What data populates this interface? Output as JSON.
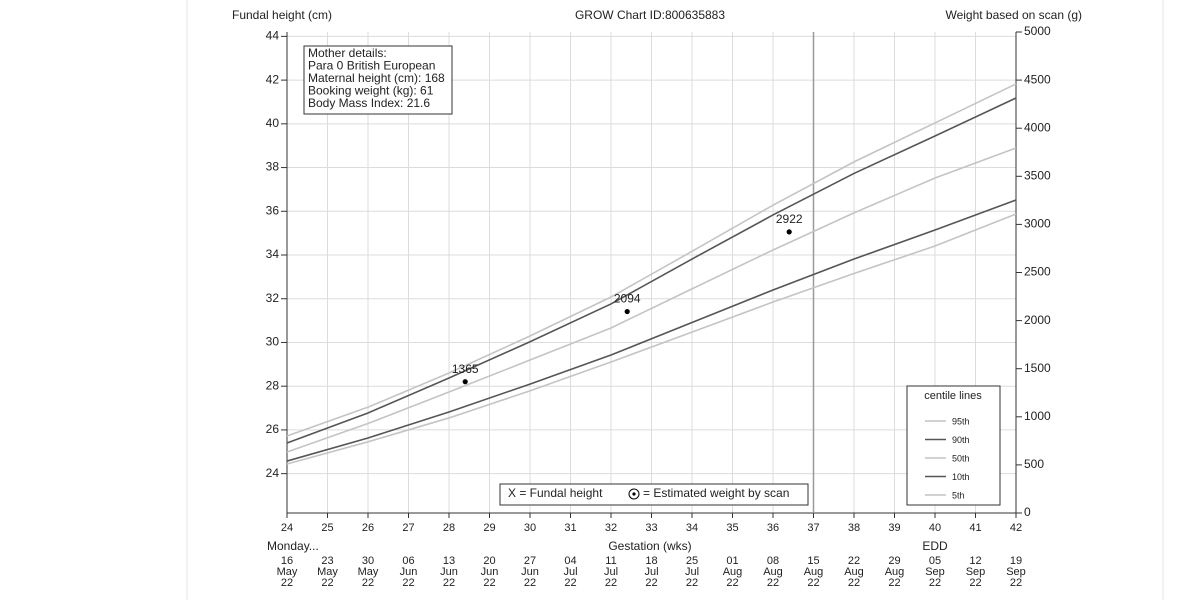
{
  "chart_data": {
    "type": "line",
    "title": "GROW Chart ID:800635883",
    "y_label": "Fundal height (cm)",
    "y2_label": "Weight based on scan (g)",
    "x_label": "Gestation (wks)",
    "date_caption": "Monday...",
    "edd_label": "EDD",
    "x": [
      24,
      26,
      28,
      30,
      32,
      34,
      36,
      38,
      40,
      42
    ],
    "xlim": [
      24,
      42
    ],
    "xticks": [
      24,
      25,
      26,
      27,
      28,
      29,
      30,
      31,
      32,
      33,
      34,
      35,
      36,
      37,
      38,
      39,
      40,
      41,
      42
    ],
    "ylim": [
      22.2,
      44.2
    ],
    "yticks": [
      24,
      26,
      28,
      30,
      32,
      34,
      36,
      38,
      40,
      42,
      44
    ],
    "y2lim": [
      0,
      5000
    ],
    "y2ticks": [
      0,
      500,
      1000,
      1500,
      2000,
      2500,
      3000,
      3500,
      4000,
      4500,
      5000
    ],
    "grid": true,
    "current_week": 37,
    "series": [
      {
        "name": "95th",
        "color": "#c4c4c4",
        "axis": "y2",
        "values": [
          800,
          1100,
          1455,
          1840,
          2245,
          2720,
          3200,
          3650,
          4055,
          4460
        ]
      },
      {
        "name": "90th",
        "color": "#555555",
        "axis": "y2",
        "values": [
          728,
          1040,
          1403,
          1780,
          2173,
          2640,
          3098,
          3530,
          3919,
          4314
        ]
      },
      {
        "name": "50th",
        "color": "#c4c4c4",
        "axis": "y2",
        "values": [
          634,
          930,
          1258,
          1590,
          1923,
          2330,
          2734,
          3120,
          3482,
          3794
        ]
      },
      {
        "name": "10th",
        "color": "#555555",
        "axis": "y2",
        "values": [
          540,
          780,
          1050,
          1340,
          1642,
          1980,
          2318,
          2640,
          2942,
          3254
        ]
      },
      {
        "name": "5th",
        "color": "#c4c4c4",
        "axis": "y2",
        "values": [
          509,
          740,
          988,
          1270,
          1570,
          1880,
          2193,
          2490,
          2775,
          3108
        ]
      }
    ],
    "legend_title": "centile lines",
    "scans": {
      "x": [
        28.4,
        32.4,
        36.4
      ],
      "values": [
        1365,
        2094,
        2922
      ],
      "color": "#000000"
    },
    "fundal_legend": "X = Fundal height",
    "scan_legend": "= Estimated weight by scan",
    "mother_details": [
      "Mother details:",
      "Para 0  British European",
      "Maternal height (cm): 168",
      "Booking weight (kg): 61",
      "Body Mass Index: 21.6"
    ],
    "dates": [
      [
        "16",
        "May",
        "22"
      ],
      [
        "23",
        "May",
        "22"
      ],
      [
        "30",
        "May",
        "22"
      ],
      [
        "06",
        "Jun",
        "22"
      ],
      [
        "13",
        "Jun",
        "22"
      ],
      [
        "20",
        "Jun",
        "22"
      ],
      [
        "27",
        "Jun",
        "22"
      ],
      [
        "04",
        "Jul",
        "22"
      ],
      [
        "11",
        "Jul",
        "22"
      ],
      [
        "18",
        "Jul",
        "22"
      ],
      [
        "25",
        "Jul",
        "22"
      ],
      [
        "01",
        "Aug",
        "22"
      ],
      [
        "08",
        "Aug",
        "22"
      ],
      [
        "15",
        "Aug",
        "22"
      ],
      [
        "22",
        "Aug",
        "22"
      ],
      [
        "29",
        "Aug",
        "22"
      ],
      [
        "05",
        "Sep",
        "22"
      ],
      [
        "12",
        "Sep",
        "22"
      ],
      [
        "19",
        "Sep",
        "22"
      ]
    ]
  }
}
